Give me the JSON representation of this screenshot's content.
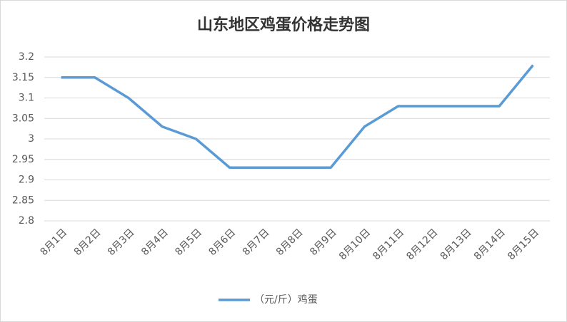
{
  "chart_data": {
    "type": "line",
    "title": "山东地区鸡蛋价格走势图",
    "categories": [
      "8月1日",
      "8月2日",
      "8月3日",
      "8月4日",
      "8月5日",
      "8月6日",
      "8月7日",
      "8月8日",
      "8月9日",
      "8月10日",
      "8月11日",
      "8月12日",
      "8月13日",
      "8月14日",
      "8月15日"
    ],
    "series": [
      {
        "name": "（元/斤）鸡蛋",
        "color": "#5b9bd5",
        "values": [
          3.15,
          3.15,
          3.1,
          3.03,
          3.0,
          2.93,
          2.93,
          2.93,
          2.93,
          3.03,
          3.08,
          3.08,
          3.08,
          3.08,
          3.18
        ]
      }
    ],
    "ylim": [
      2.8,
      3.2
    ],
    "yticks": [
      2.8,
      2.85,
      2.9,
      2.95,
      3,
      3.05,
      3.1,
      3.15,
      3.2
    ],
    "grid": true,
    "legend": "bottom"
  }
}
